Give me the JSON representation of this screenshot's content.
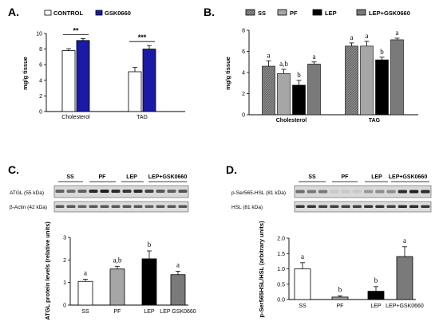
{
  "panels": {
    "A": {
      "letter": "A."
    },
    "B": {
      "letter": "B."
    },
    "C": {
      "letter": "C.",
      "blot_labels": [
        "ATGL (55 kDa)",
        "β-Actin (42 kDa)"
      ],
      "group_labels": [
        "SS",
        "PF",
        "LEP",
        "LEP+GSK0660"
      ]
    },
    "D": {
      "letter": "D.",
      "blot_labels": [
        "p-Ser565-HSL (81 kDa)",
        "HSL (81 kDa)"
      ],
      "group_labels": [
        "SS",
        "PF",
        "LEP",
        "LEP+GSK0660"
      ]
    }
  },
  "chart_data": [
    {
      "panel": "A",
      "type": "bar",
      "categories": [
        "Cholesterol",
        "TAG"
      ],
      "ylabel": "mg/g tissue",
      "ylim": [
        0,
        10
      ],
      "yticks": [
        0,
        2,
        4,
        6,
        8,
        10
      ],
      "legend_position": "top",
      "series": [
        {
          "name": "CONTROL",
          "color": "#ffffff",
          "values": [
            7.8,
            5.1
          ],
          "errors": [
            0.25,
            0.55
          ]
        },
        {
          "name": "GSK0660",
          "color": "#1a1aa6",
          "values": [
            9.1,
            8.0
          ],
          "errors": [
            0.25,
            0.45
          ]
        }
      ],
      "significance": [
        "**",
        "***"
      ]
    },
    {
      "panel": "B",
      "type": "bar",
      "categories": [
        "Cholesterol",
        "TAG"
      ],
      "ylabel": "mg/g tissue",
      "ylim": [
        0,
        8
      ],
      "yticks": [
        0,
        2,
        4,
        6,
        8
      ],
      "legend_position": "top",
      "series": [
        {
          "name": "SS",
          "color": "#8c8c8c",
          "values": [
            4.6,
            6.5
          ],
          "errors": [
            0.5,
            0.3
          ],
          "letters": [
            "a",
            "a"
          ]
        },
        {
          "name": "PF",
          "color": "#a6a6a6",
          "values": [
            3.9,
            6.5
          ],
          "errors": [
            0.4,
            0.45
          ],
          "letters": [
            "a,b",
            "a"
          ]
        },
        {
          "name": "LEP",
          "color": "#000000",
          "values": [
            2.8,
            5.2
          ],
          "errors": [
            0.45,
            0.25
          ],
          "letters": [
            "b",
            "b"
          ]
        },
        {
          "name": "LEP+GSK0660",
          "color": "#7a7a7a",
          "values": [
            4.8,
            7.1
          ],
          "errors": [
            0.2,
            0.15
          ],
          "letters": [
            "a",
            "a"
          ]
        }
      ]
    },
    {
      "panel": "C",
      "type": "bar",
      "categories": [
        "SS",
        "PF",
        "LEP",
        "LEP GSK0660"
      ],
      "ylabel": "ATGL protein levels (relative units)",
      "ylim": [
        0,
        3
      ],
      "yticks": [
        0,
        1,
        2,
        3
      ],
      "values": [
        1.05,
        1.6,
        2.05,
        1.35
      ],
      "errors": [
        0.1,
        0.12,
        0.35,
        0.15
      ],
      "colors": [
        "#ffffff",
        "#a6a6a6",
        "#000000",
        "#7a7a7a"
      ],
      "letters": [
        "a",
        "a,b",
        "b",
        "a"
      ]
    },
    {
      "panel": "D",
      "type": "bar",
      "categories": [
        "SS",
        "PF",
        "LEP",
        "LEP+GSK0660"
      ],
      "ylabel": "p-Ser565HSL/HSL (arbitrary units)",
      "ylim": [
        0,
        2
      ],
      "yticks": [
        0.0,
        0.5,
        1.0,
        1.5,
        2.0
      ],
      "values": [
        1.0,
        0.08,
        0.27,
        1.4
      ],
      "errors": [
        0.2,
        0.04,
        0.15,
        0.32
      ],
      "colors": [
        "#ffffff",
        "#a6a6a6",
        "#000000",
        "#7a7a7a"
      ],
      "letters": [
        "a",
        "b",
        "b",
        "a"
      ]
    }
  ]
}
